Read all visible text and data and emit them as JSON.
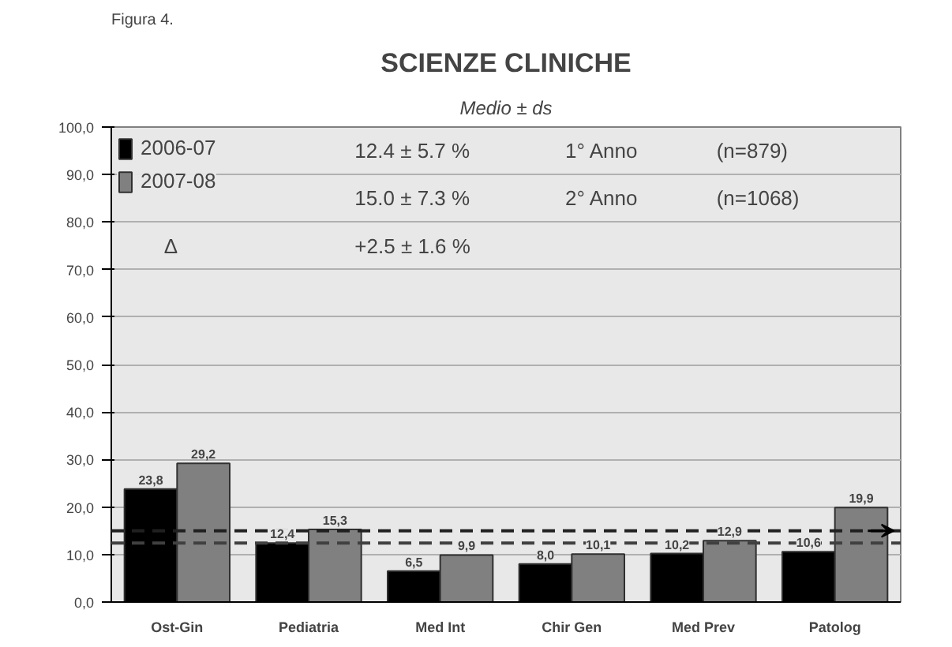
{
  "chart_data": {
    "type": "bar",
    "title": "SCIENZE CLINICHE",
    "subtitle": "Medio ± ds",
    "categories": [
      "Ost-Gin",
      "Pediatria",
      "Med Int",
      "Chir Gen",
      "Med Prev",
      "Patolog"
    ],
    "series": [
      {
        "name": "2006-07",
        "color": "#000000",
        "values": [
          23.8,
          12.4,
          6.5,
          8.0,
          10.2,
          10.6
        ],
        "value_labels": [
          "23,8",
          "12,4",
          "6,5",
          "8,0",
          "10,2",
          "10,6"
        ]
      },
      {
        "name": "2007-08",
        "color": "#808080",
        "values": [
          29.2,
          15.3,
          9.9,
          10.1,
          12.9,
          19.9
        ],
        "value_labels": [
          "29,2",
          "15,3",
          "9,9",
          "10,1",
          "12,9",
          "19,9"
        ]
      }
    ],
    "ylim": [
      0,
      100
    ],
    "yticks": [
      {
        "value": 0,
        "label": "0,0"
      },
      {
        "value": 10,
        "label": "10,0"
      },
      {
        "value": 20,
        "label": "20,0"
      },
      {
        "value": 30,
        "label": "30,0"
      },
      {
        "value": 40,
        "label": "40,0"
      },
      {
        "value": 50,
        "label": "50,0"
      },
      {
        "value": 60,
        "label": "60,0"
      },
      {
        "value": 70,
        "label": "70,0"
      },
      {
        "value": 80,
        "label": "80,0"
      },
      {
        "value": 90,
        "label": "90,0"
      },
      {
        "value": 100,
        "label": "100,0"
      }
    ],
    "grid": "y",
    "legend": "top left",
    "ref_lines": [
      {
        "axis": "y",
        "value": 12.4,
        "color": "#404040",
        "line_style": "dashed"
      },
      {
        "axis": "y",
        "value": 15.0,
        "color": "#202020",
        "line_style": "dashed"
      }
    ],
    "annotations": [
      "Figura 4.",
      "12.4 ± 5.7 %",
      "1° Anno",
      "(n=879)",
      "15.0 ± 7.3 %",
      "2° Anno",
      "(n=1068)",
      "Δ",
      "+2.5 ± 1.6 %"
    ]
  }
}
